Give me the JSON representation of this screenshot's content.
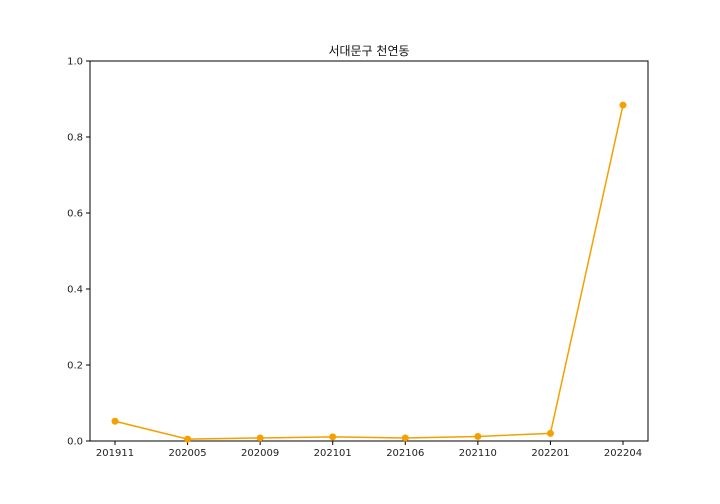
{
  "chart_data": {
    "type": "line",
    "title": "서대문구 천연동",
    "xlabel": "",
    "ylabel": "",
    "categories": [
      "201911",
      "202005",
      "202009",
      "202101",
      "202106",
      "202110",
      "202201",
      "202204"
    ],
    "series": [
      {
        "values": [
          0.052,
          0.005,
          0.008,
          0.011,
          0.008,
          0.012,
          0.02,
          0.884
        ],
        "color": "#f5a000"
      }
    ],
    "ylim": [
      0.0,
      1.0
    ],
    "yticks": [
      "0.0",
      "0.2",
      "0.4",
      "0.6",
      "0.8",
      "1.0"
    ],
    "grid": false,
    "legend": "none",
    "marker": "circle"
  }
}
